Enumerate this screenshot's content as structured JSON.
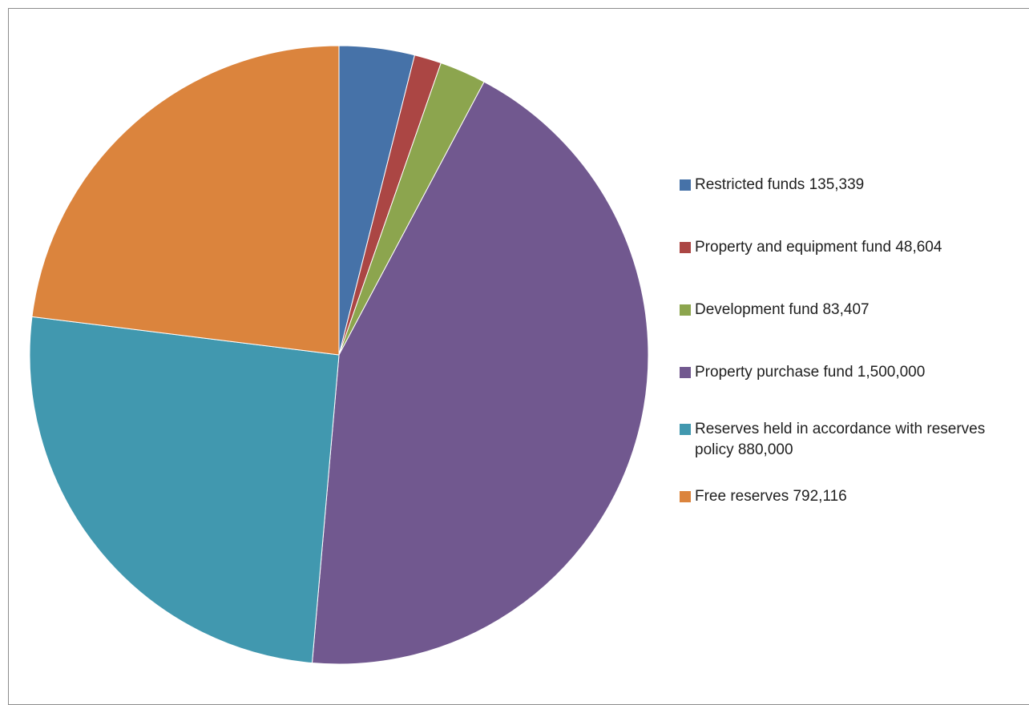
{
  "chart_data": {
    "type": "pie",
    "title": "",
    "start_angle_deg": 0,
    "direction": "clockwise",
    "legend_position": "right",
    "slices": [
      {
        "label": "Restricted funds 135,339",
        "value": 135339,
        "color": "#4672A8"
      },
      {
        "label": "Property and equipment fund 48,604",
        "value": 48604,
        "color": "#AB4644"
      },
      {
        "label": "Development fund 83,407",
        "value": 83407,
        "color": "#8CA54E"
      },
      {
        "label": "Property purchase fund 1,500,000",
        "value": 1500000,
        "color": "#71588F"
      },
      {
        "label": "Reserves held in accordance with reserves policy 880,000",
        "value": 880000,
        "color": "#4198AF"
      },
      {
        "label": "Free reserves 792,116",
        "value": 792116,
        "color": "#DB843D"
      }
    ]
  }
}
